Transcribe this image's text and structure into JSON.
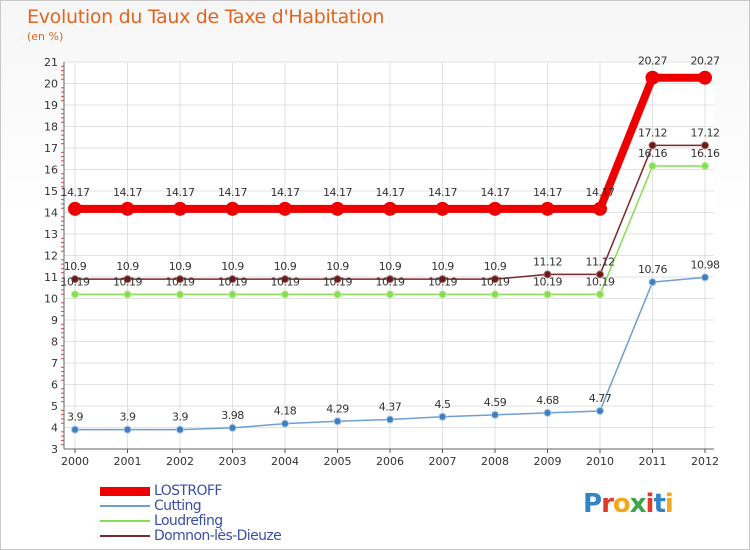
{
  "chart_data": {
    "type": "line",
    "title": "Evolution du Taux de Taxe d'Habitation",
    "subtitle": "(en %)",
    "categories": [
      "2000",
      "2001",
      "2002",
      "2003",
      "2004",
      "2005",
      "2006",
      "2007",
      "2008",
      "2009",
      "2010",
      "2011",
      "2012"
    ],
    "ylim": [
      3,
      21
    ],
    "yticks": [
      "3",
      "4",
      "5",
      "6",
      "7",
      "8",
      "9",
      "10",
      "11",
      "12",
      "13",
      "14",
      "15",
      "16",
      "17",
      "18",
      "19",
      "20",
      "21"
    ],
    "grid": true,
    "legend_position": "bottom-left",
    "series": [
      {
        "name": "LOSTROFF",
        "color": "#ee0000",
        "values": [
          14.17,
          14.17,
          14.17,
          14.17,
          14.17,
          14.17,
          14.17,
          14.17,
          14.17,
          14.17,
          14.17,
          20.27,
          20.27
        ],
        "labels": [
          "14.17",
          "14.17",
          "14.17",
          "14.17",
          "14.17",
          "14.17",
          "14.17",
          "14.17",
          "14.17",
          "14.17",
          "14.17",
          "20.27",
          "20.27"
        ]
      },
      {
        "name": "Cutting",
        "color": "#6f9fd0",
        "values": [
          3.9,
          3.9,
          3.9,
          3.98,
          4.18,
          4.29,
          4.37,
          4.5,
          4.59,
          4.68,
          4.77,
          10.76,
          10.98
        ],
        "labels": [
          "3.9",
          "3.9",
          "3.9",
          "3.98",
          "4.18",
          "4.29",
          "4.37",
          "4.5",
          "4.59",
          "4.68",
          "4.77",
          "10.76",
          "10.98"
        ]
      },
      {
        "name": "Loudrefing",
        "color": "#88dd55",
        "values": [
          10.19,
          10.19,
          10.19,
          10.19,
          10.19,
          10.19,
          10.19,
          10.19,
          10.19,
          10.19,
          10.19,
          16.16,
          16.16
        ],
        "labels": [
          "10.19",
          "10.19",
          "10.19",
          "10.19",
          "10.19",
          "10.19",
          "10.19",
          "10.19",
          "10.19",
          "10.19",
          "10.19",
          "16.16",
          "16.16"
        ]
      },
      {
        "name": "Domnon-lès-Dieuze",
        "color": "#7a2a2a",
        "values": [
          10.9,
          10.9,
          10.9,
          10.9,
          10.9,
          10.9,
          10.9,
          10.9,
          10.9,
          11.12,
          11.12,
          17.12,
          17.12
        ],
        "labels": [
          "10.9",
          "10.9",
          "10.9",
          "10.9",
          "10.9",
          "10.9",
          "10.9",
          "10.9",
          "10.9",
          "11.12",
          "11.12",
          "17.12",
          "17.12"
        ]
      }
    ]
  },
  "logo": {
    "text": "Proxiti",
    "letters": [
      "P",
      "r",
      "o",
      "x",
      "i",
      "t",
      "i"
    ],
    "colors": [
      "#2f86c7",
      "#e23a2a",
      "#f2a81c",
      "#3aa54a",
      "#e23a2a",
      "#2f86c7",
      "#f2a81c"
    ]
  }
}
